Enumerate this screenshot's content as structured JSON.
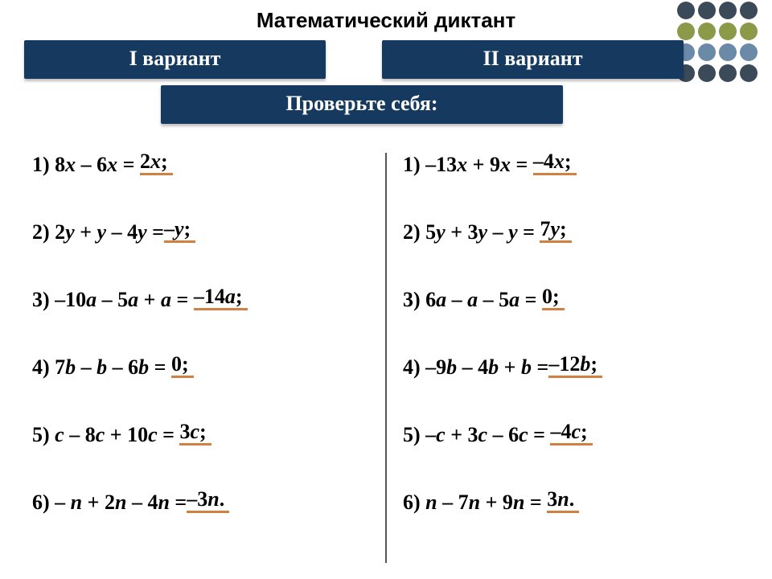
{
  "title": "Математический диктант",
  "tabs": {
    "left": "I вариант",
    "right": "II вариант"
  },
  "check_label": "Проверьте себя:",
  "dots_colors": {
    "row1": [
      "#3a4a58",
      "#3a4a58",
      "#3a4a58",
      "#3a4a58"
    ],
    "row2": [
      "#8a9a48",
      "#8a9a48",
      "#8a9a48",
      "#8a9a48"
    ],
    "row3": [
      "#6a8aa8",
      "#6a8aa8",
      "#6a8aa8",
      "#6a8aa8"
    ],
    "row4": [
      "#3a4a58",
      "#3a4a58",
      "#3a4a58",
      "#3a4a58"
    ]
  },
  "underline_color": "#d08040",
  "banner_color": "#163a5f",
  "text_color": "#000000",
  "font_size_pt": 20,
  "left_col": [
    {
      "n": "1)",
      "pre": "8",
      "v1": "x",
      "mid1": " – 6",
      "v2": "x",
      "mid2": " = ",
      "ans_plain": "2",
      "ans_var": "x",
      "ans_tail": ";"
    },
    {
      "n": "2)",
      "pre": "2",
      "v1": "y",
      "mid1": " + ",
      "v2": "y",
      "mid2": " – 4",
      "v3": "y",
      "mid3": " =",
      "ans_plain": "–",
      "ans_var": "y",
      "ans_tail": ";"
    },
    {
      "n": "3)",
      "pre": "–10",
      "v1": "a",
      "mid1": " – 5",
      "v2": "a",
      "mid2": " + ",
      "v3": "a",
      "mid3": " = ",
      "ans_plain": "–14",
      "ans_var": "a",
      "ans_tail": ";"
    },
    {
      "n": "4)",
      "pre": "7",
      "v1": "b",
      "mid1": " – ",
      "v2": "b",
      "mid2": " – 6",
      "v3": "b",
      "mid3": "  = ",
      "ans_plain": "0",
      "ans_var": "",
      "ans_tail": ";"
    },
    {
      "n": "5)",
      "pre": "",
      "v1": "c",
      "mid1": " – 8",
      "v2": "c",
      "mid2": " + 10",
      "v3": "c",
      "mid3": " = ",
      "ans_plain": "3",
      "ans_var": "c",
      "ans_tail": ";"
    },
    {
      "n": "6)",
      "pre": "– ",
      "v1": "n",
      "mid1": " + 2",
      "v2": "n",
      "mid2": " – 4",
      "v3": "n",
      "mid3": " =",
      "ans_plain": "–3",
      "ans_var": "n",
      "ans_tail": "."
    }
  ],
  "right_col": [
    {
      "n": "1)",
      "pre": "–13",
      "v1": "x",
      "mid1": " + 9",
      "v2": "x",
      "mid2": " = ",
      "ans_plain": "–4",
      "ans_var": "x",
      "ans_tail": ";"
    },
    {
      "n": "2)",
      "pre": "5",
      "v1": "y",
      "mid1": " + 3",
      "v2": "y",
      "mid2": " – ",
      "v3": "y",
      "mid3": " = ",
      "ans_plain": "7",
      "ans_var": "y",
      "ans_tail": ";"
    },
    {
      "n": "3)",
      "pre": "6",
      "v1": "a",
      "mid1": " – ",
      "v2": "a",
      "mid2": " – 5",
      "v3": "a",
      "mid3": " = ",
      "ans_plain": "0",
      "ans_var": "",
      "ans_tail": ";"
    },
    {
      "n": "4)",
      "pre": "–9",
      "v1": "b",
      "mid1": " – 4",
      "v2": "b",
      "mid2": " + ",
      "v3": "b",
      "mid3": " =",
      "ans_plain": "–12",
      "ans_var": "b",
      "ans_tail": ";"
    },
    {
      "n": "5)",
      "pre": "–",
      "v1": "c",
      "mid1": " + 3",
      "v2": "c",
      "mid2": " – 6",
      "v3": "c",
      "mid3": " = ",
      "ans_plain": "–4",
      "ans_var": "c",
      "ans_tail": ";"
    },
    {
      "n": "6)",
      "pre": "",
      "v1": "n",
      "mid1": " – 7",
      "v2": "n",
      "mid2": " + 9",
      "v3": "n",
      "mid3": " = ",
      "ans_plain": "3",
      "ans_var": "n",
      "ans_tail": "."
    }
  ]
}
